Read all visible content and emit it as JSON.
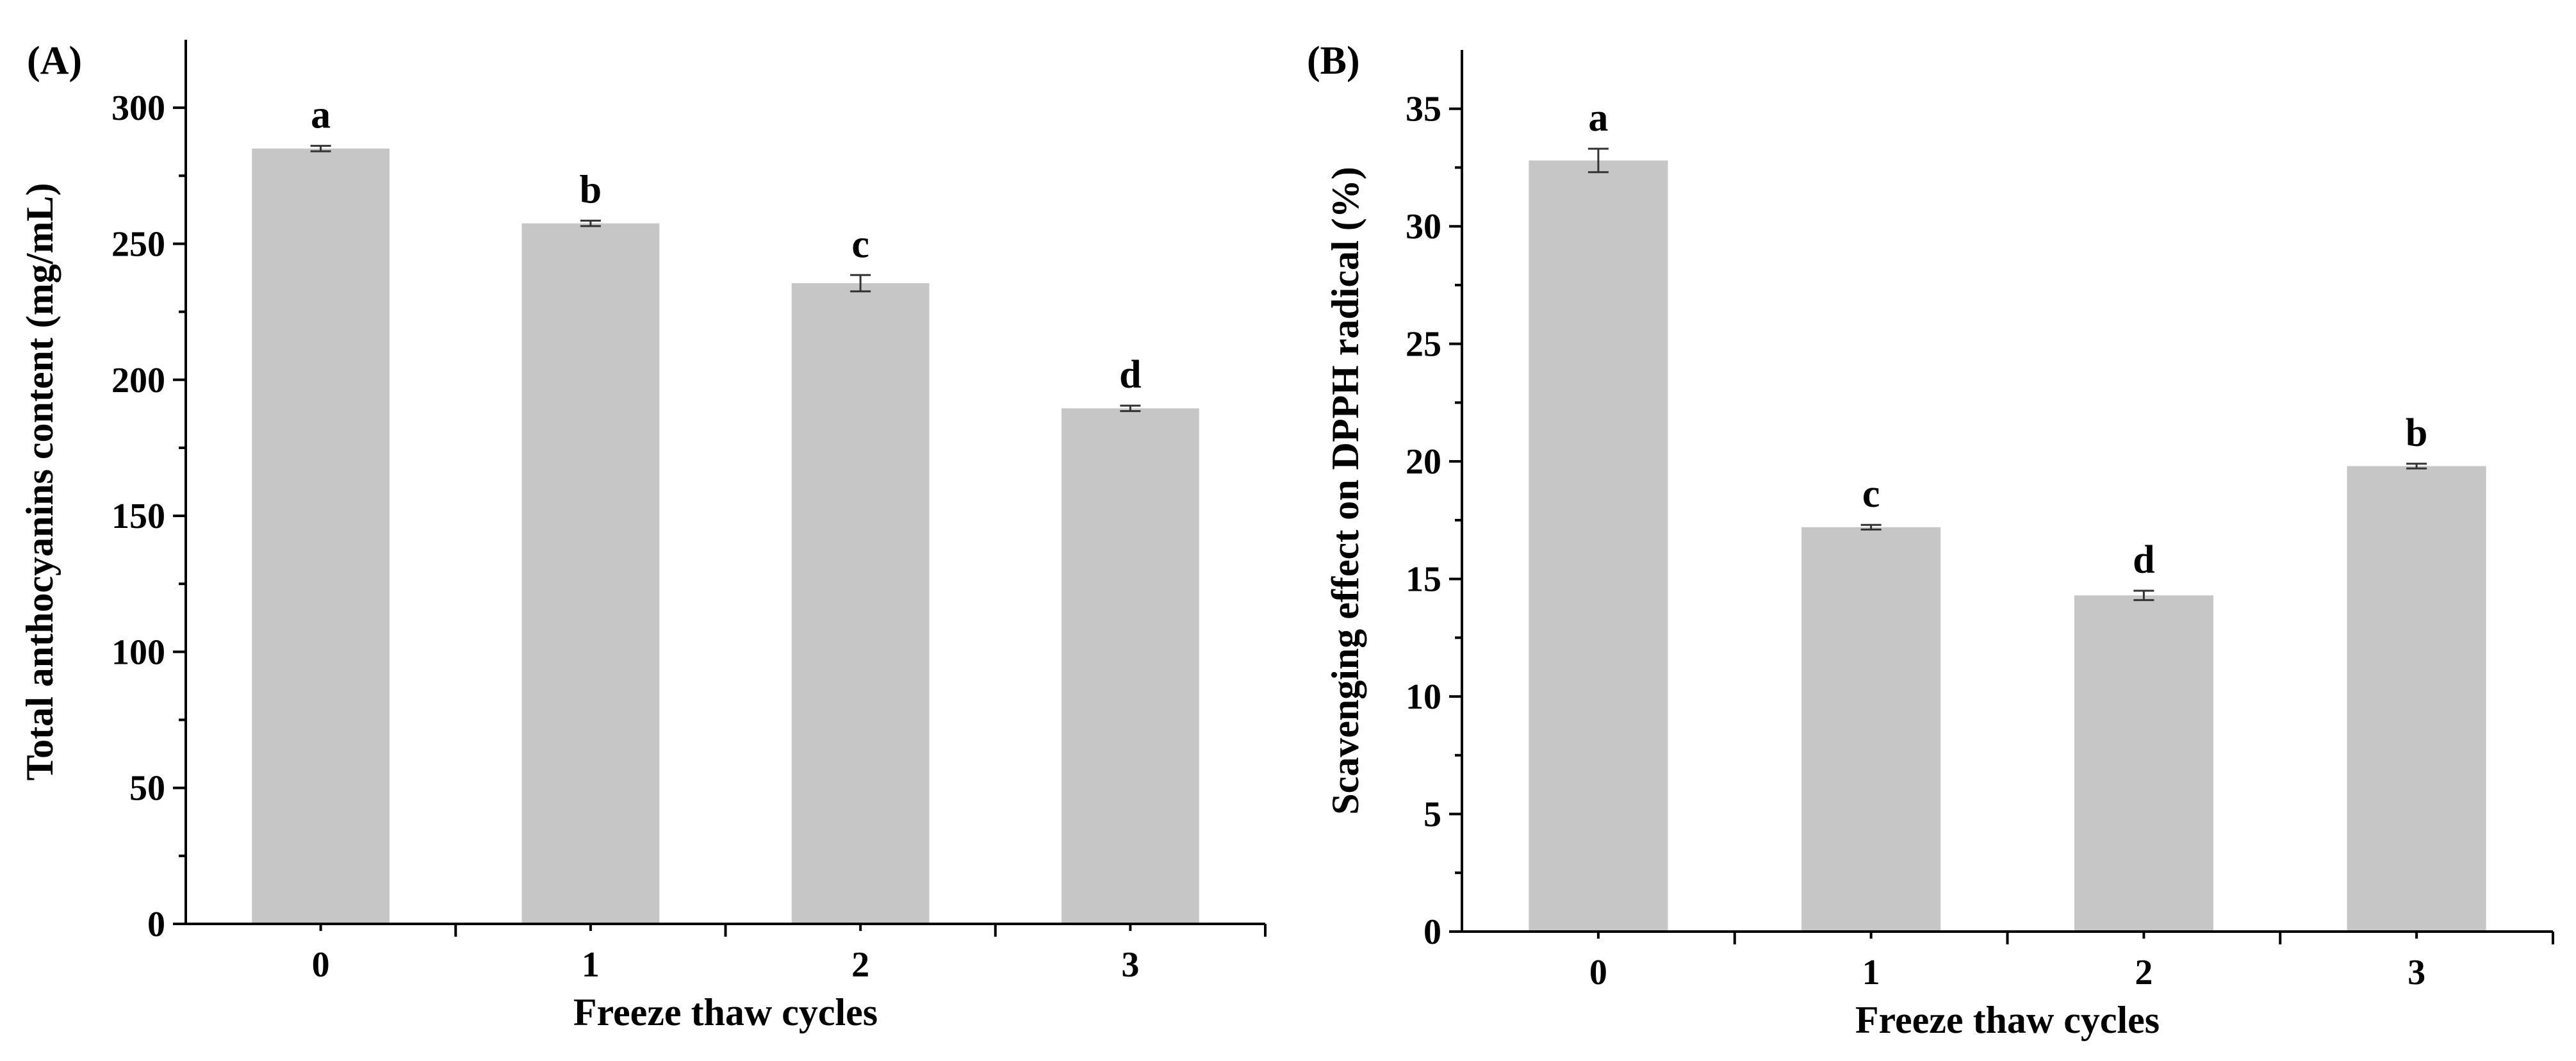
{
  "figure": {
    "bar_color": "#c6c6c6",
    "axis_color": "#000000",
    "errorbar_color": "#333333"
  },
  "chart_data": [
    {
      "type": "bar",
      "panel_label": "(A)",
      "title": "",
      "categories": [
        "0",
        "1",
        "2",
        "3"
      ],
      "values": [
        285,
        257.5,
        235.5,
        189.5
      ],
      "errors": [
        1,
        1,
        3,
        1
      ],
      "significance_labels": [
        "a",
        "b",
        "c",
        "d"
      ],
      "xlabel": "Freeze thaw cycles",
      "ylabel": "Total anthocyanins content (mg/mL)",
      "ylim": [
        0,
        325
      ],
      "yticks": [
        0,
        50,
        100,
        150,
        200,
        250,
        300
      ],
      "yticks_minor": [
        25,
        75,
        125,
        175,
        225,
        275
      ],
      "grid": false,
      "legend": "none"
    },
    {
      "type": "bar",
      "panel_label": "(B)",
      "title": "",
      "categories": [
        "0",
        "1",
        "2",
        "3"
      ],
      "values": [
        32.8,
        17.2,
        14.3,
        19.8
      ],
      "errors": [
        0.5,
        0.1,
        0.2,
        0.1
      ],
      "significance_labels": [
        "a",
        "c",
        "d",
        "b"
      ],
      "xlabel": "Freeze thaw cycles",
      "ylabel": "Scavenging effect on DPPH radical (%)",
      "ylim": [
        0,
        37.5
      ],
      "yticks": [
        0,
        5,
        10,
        15,
        20,
        25,
        30,
        35
      ],
      "yticks_minor": [
        2.5,
        7.5,
        12.5,
        17.5,
        22.5,
        27.5,
        32.5
      ],
      "grid": false,
      "legend": "none"
    }
  ]
}
